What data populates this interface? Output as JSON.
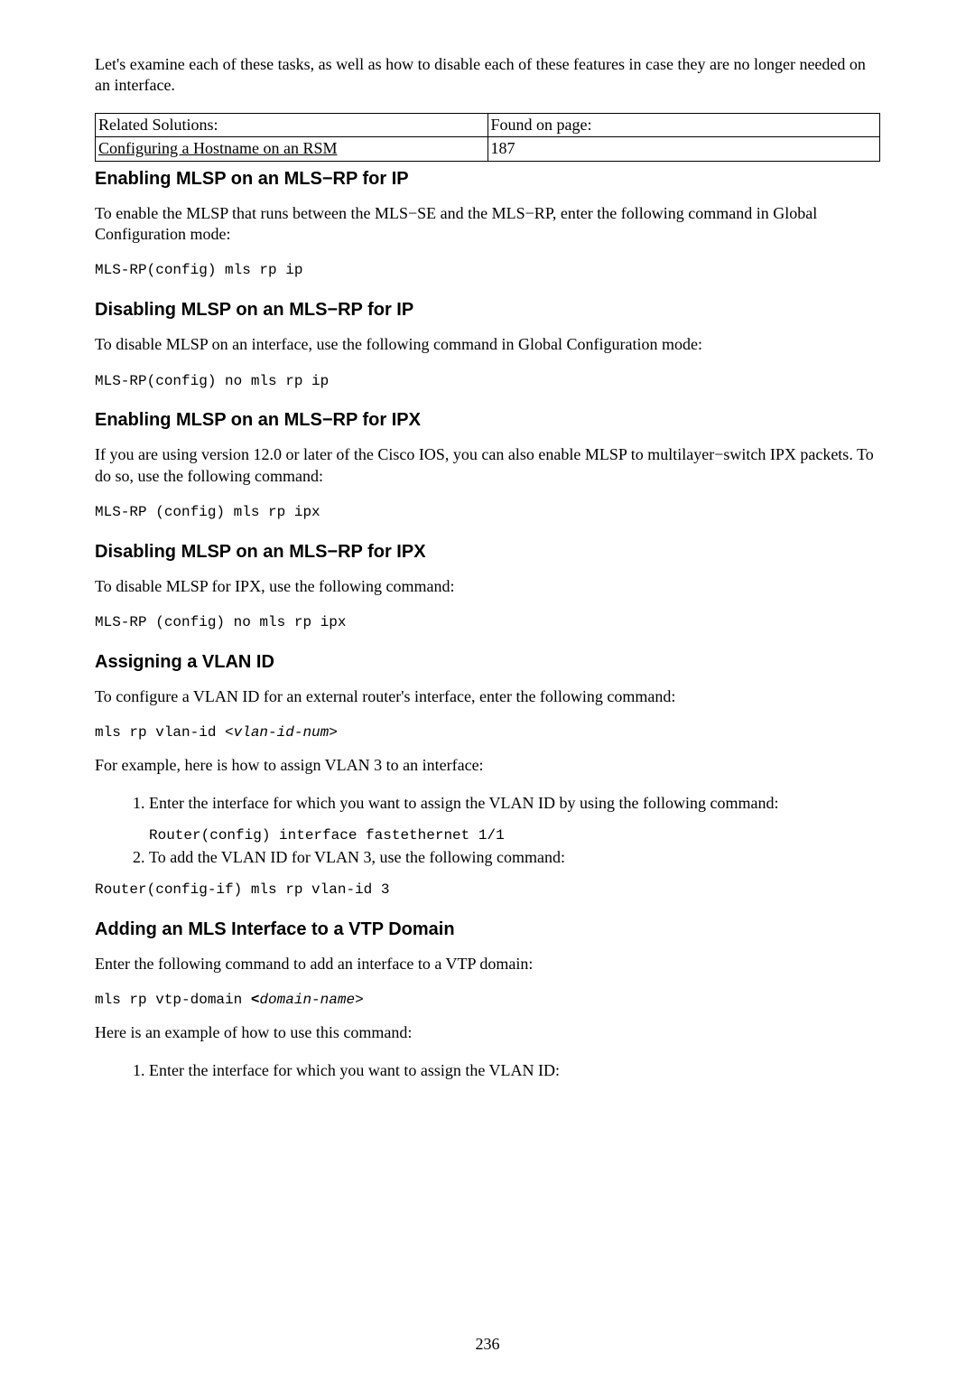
{
  "intro": "Let's examine each of these tasks, as well as how to disable each of these features in case they are no longer needed on an interface.",
  "related_table": {
    "header_left": "Related Solutions:",
    "header_right": "Found on page:",
    "row_link": "Configuring a Hostname on an RSM",
    "row_page": "187"
  },
  "sections": {
    "enable_ip": {
      "title": "Enabling MLSP on an MLS−RP for IP",
      "para": "To enable the MLSP that runs between the MLS−SE and the MLS−RP, enter the following command in Global Configuration mode:",
      "code": "MLS-RP(config) mls rp ip"
    },
    "disable_ip": {
      "title": "Disabling MLSP on an MLS−RP for IP",
      "para": "To disable MLSP on an interface, use the following command in Global Configuration mode:",
      "code": "MLS-RP(config) no mls rp ip"
    },
    "enable_ipx": {
      "title": "Enabling MLSP on an MLS−RP for IPX",
      "para": "If you are using version 12.0 or later of the Cisco IOS, you can also enable MLSP to multilayer−switch IPX packets. To do so, use the following command:",
      "code": "MLS-RP (config) mls rp ipx"
    },
    "disable_ipx": {
      "title": "Disabling MLSP on an MLS−RP for IPX",
      "para": "To disable MLSP for IPX, use the following command:",
      "code": "MLS-RP (config) no mls rp ipx"
    },
    "vlan": {
      "title": "Assigning a VLAN ID",
      "para1": "To configure a VLAN ID for an external router's interface, enter the following command:",
      "code1_prefix": "mls rp vlan-id <",
      "code1_var": "vlan-id-num",
      "code1_suffix": ">",
      "para2": "For example, here is how to assign VLAN 3 to an interface:",
      "step1": "Enter the interface for which you want to assign the VLAN ID by using the following command:",
      "step1_code": "Router(config) interface fastethernet 1/1",
      "step2": "To add the VLAN ID for VLAN 3, use the following command:",
      "code2": "Router(config-if) mls rp vlan-id 3"
    },
    "vtp": {
      "title": "Adding an MLS Interface to a VTP Domain",
      "para1": "Enter the following command to add an interface to a VTP domain:",
      "code1_prefix": "mls rp vtp-domain ",
      "code1_bold": "<",
      "code1_var": "domain-name",
      "code1_suffix": ">",
      "para2": "Here is an example of how to use this command:",
      "step1": "Enter the interface for which you want to assign the VLAN ID:"
    }
  },
  "page_number": "236"
}
